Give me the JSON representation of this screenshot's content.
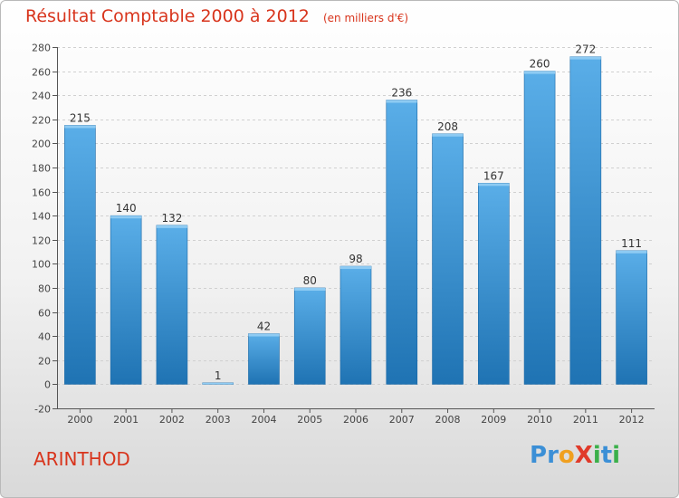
{
  "colors": {
    "title": "#d8341c",
    "bar_light": "#5aaee8",
    "bar_dark": "#1f73b3",
    "grid": "#d0d0d0",
    "axis": "#555555"
  },
  "header": {
    "title": "Résultat Comptable 2000 à 2012",
    "subtitle": "(en milliers d'€)"
  },
  "commune": "ARINTHOD",
  "logo": {
    "text": "ProXiti",
    "letters": [
      {
        "ch": "P",
        "color": "#3b8fd6"
      },
      {
        "ch": "r",
        "color": "#3b8fd6"
      },
      {
        "ch": "o",
        "color": "#f0a020"
      },
      {
        "ch": "X",
        "color": "#e03a2a"
      },
      {
        "ch": "i",
        "color": "#3bb04a"
      },
      {
        "ch": "t",
        "color": "#3b8fd6"
      },
      {
        "ch": "i",
        "color": "#3bb04a"
      }
    ]
  },
  "chart_data": {
    "type": "bar",
    "title": "Résultat Comptable 2000 à 2012",
    "subtitle": "(en milliers d'€)",
    "categories": [
      "2000",
      "2001",
      "2002",
      "2003",
      "2004",
      "2005",
      "2006",
      "2007",
      "2008",
      "2009",
      "2010",
      "2011",
      "2012"
    ],
    "values": [
      215,
      140,
      132,
      1,
      42,
      80,
      98,
      236,
      208,
      167,
      260,
      272,
      111
    ],
    "value_labels": [
      "215",
      "140",
      "132",
      "1",
      "42",
      "80",
      "98",
      "236",
      "208",
      "167",
      "260",
      "272",
      "111"
    ],
    "ylim": [
      -20,
      280
    ],
    "yticks": [
      -20,
      0,
      20,
      40,
      60,
      80,
      100,
      120,
      140,
      160,
      180,
      200,
      220,
      240,
      260,
      280
    ],
    "grid": true,
    "legend": "none"
  }
}
